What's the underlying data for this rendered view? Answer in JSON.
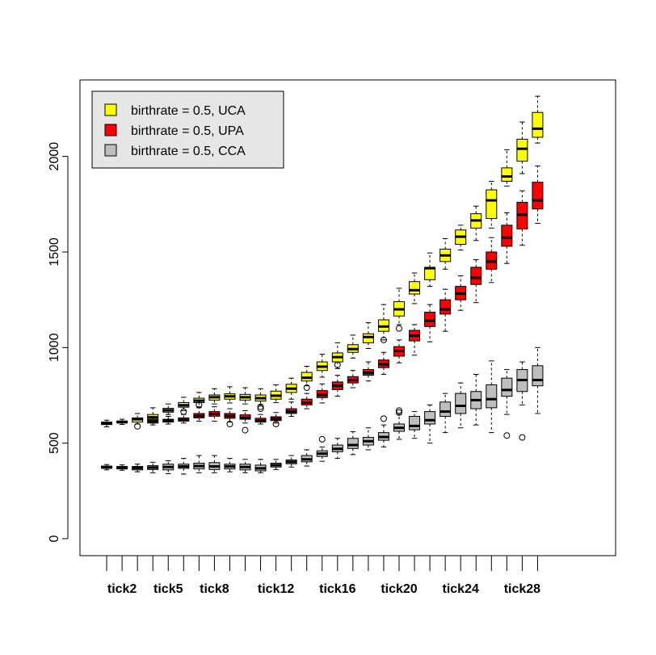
{
  "chart_data": {
    "type": "boxplot",
    "title": "",
    "xlabel": "",
    "ylabel": "",
    "ylim": [
      -90,
      2420
    ],
    "yticks": [
      0,
      500,
      1000,
      1500,
      2000
    ],
    "legend": {
      "placement": "top-left",
      "entries": [
        {
          "label": "birthrate = 0.5, UCA",
          "color": "#ffff00"
        },
        {
          "label": "birthrate = 0.5, UPA",
          "color": "#ff0000"
        },
        {
          "label": "birthrate = 0.5, CCA",
          "color": "#bebebe"
        }
      ]
    },
    "tick_labels": [
      {
        "label": "tick2",
        "tick": 2
      },
      {
        "label": "tick5",
        "tick": 5
      },
      {
        "label": "tick8",
        "tick": 8
      },
      {
        "label": "tick12",
        "tick": 12
      },
      {
        "label": "tick16",
        "tick": 16
      },
      {
        "label": "tick20",
        "tick": 20
      },
      {
        "label": "tick24",
        "tick": 24
      },
      {
        "label": "tick28",
        "tick": 28
      }
    ],
    "series": [
      {
        "name": "birthrate = 0.5, UCA",
        "color": "#ffff00",
        "boxes": [
          {
            "tick": 1,
            "min": 585,
            "q1": 597,
            "median": 603,
            "q3": 610,
            "max": 620,
            "outliers": []
          },
          {
            "tick": 2,
            "min": 598,
            "q1": 605,
            "median": 610,
            "q3": 616,
            "max": 625,
            "outliers": []
          },
          {
            "tick": 3,
            "min": 600,
            "q1": 610,
            "median": 625,
            "q3": 632,
            "max": 655,
            "outliers": [
              588
            ]
          },
          {
            "tick": 4,
            "min": 605,
            "q1": 625,
            "median": 635,
            "q3": 650,
            "max": 685,
            "outliers": []
          },
          {
            "tick": 5,
            "min": 650,
            "q1": 662,
            "median": 672,
            "q3": 682,
            "max": 705,
            "outliers": []
          },
          {
            "tick": 6,
            "min": 670,
            "q1": 688,
            "median": 698,
            "q3": 712,
            "max": 740,
            "outliers": [
              665
            ]
          },
          {
            "tick": 7,
            "min": 690,
            "q1": 712,
            "median": 722,
            "q3": 735,
            "max": 765,
            "outliers": [
              700
            ]
          },
          {
            "tick": 8,
            "min": 705,
            "q1": 725,
            "median": 740,
            "q3": 752,
            "max": 785,
            "outliers": []
          },
          {
            "tick": 9,
            "min": 710,
            "q1": 730,
            "median": 745,
            "q3": 758,
            "max": 795,
            "outliers": []
          },
          {
            "tick": 10,
            "min": 705,
            "q1": 725,
            "median": 740,
            "q3": 755,
            "max": 790,
            "outliers": []
          },
          {
            "tick": 11,
            "min": 700,
            "q1": 720,
            "median": 735,
            "q3": 752,
            "max": 785,
            "outliers": [
              690,
              680
            ]
          },
          {
            "tick": 12,
            "min": 712,
            "q1": 730,
            "median": 748,
            "q3": 772,
            "max": 805,
            "outliers": []
          },
          {
            "tick": 13,
            "min": 730,
            "q1": 765,
            "median": 785,
            "q3": 808,
            "max": 840,
            "outliers": []
          },
          {
            "tick": 14,
            "min": 800,
            "q1": 825,
            "median": 842,
            "q3": 870,
            "max": 902,
            "outliers": [
              790
            ]
          },
          {
            "tick": 15,
            "min": 845,
            "q1": 880,
            "median": 900,
            "q3": 925,
            "max": 965,
            "outliers": []
          },
          {
            "tick": 16,
            "min": 890,
            "q1": 925,
            "median": 950,
            "q3": 972,
            "max": 1025,
            "outliers": [
              910
            ]
          },
          {
            "tick": 17,
            "min": 945,
            "q1": 975,
            "median": 992,
            "q3": 1015,
            "max": 1065,
            "outliers": []
          },
          {
            "tick": 18,
            "min": 995,
            "q1": 1025,
            "median": 1055,
            "q3": 1072,
            "max": 1130,
            "outliers": []
          },
          {
            "tick": 19,
            "min": 1040,
            "q1": 1085,
            "median": 1110,
            "q3": 1145,
            "max": 1225,
            "outliers": [
              1040
            ]
          },
          {
            "tick": 20,
            "min": 1120,
            "q1": 1165,
            "median": 1200,
            "q3": 1240,
            "max": 1310,
            "outliers": [
              1100
            ]
          },
          {
            "tick": 21,
            "min": 1230,
            "q1": 1280,
            "median": 1300,
            "q3": 1345,
            "max": 1390,
            "outliers": []
          },
          {
            "tick": 22,
            "min": 1320,
            "q1": 1355,
            "median": 1415,
            "q3": 1420,
            "max": 1495,
            "outliers": []
          },
          {
            "tick": 23,
            "min": 1410,
            "q1": 1450,
            "median": 1482,
            "q3": 1515,
            "max": 1570,
            "outliers": []
          },
          {
            "tick": 24,
            "min": 1510,
            "q1": 1540,
            "median": 1580,
            "q3": 1615,
            "max": 1640,
            "outliers": []
          },
          {
            "tick": 25,
            "min": 1560,
            "q1": 1625,
            "median": 1665,
            "q3": 1700,
            "max": 1740,
            "outliers": []
          },
          {
            "tick": 26,
            "min": 1625,
            "q1": 1675,
            "median": 1770,
            "q3": 1825,
            "max": 1870,
            "outliers": []
          },
          {
            "tick": 27,
            "min": 1845,
            "q1": 1870,
            "median": 1895,
            "q3": 1940,
            "max": 2035,
            "outliers": []
          },
          {
            "tick": 28,
            "min": 1910,
            "q1": 1975,
            "median": 2040,
            "q3": 2090,
            "max": 2180,
            "outliers": []
          },
          {
            "tick": 29,
            "min": 2070,
            "q1": 2100,
            "median": 2145,
            "q3": 2230,
            "max": 2315,
            "outliers": []
          }
        ]
      },
      {
        "name": "birthrate = 0.5, UPA",
        "color": "#ff0000",
        "boxes": [
          {
            "tick": 4,
            "min": 595,
            "q1": 605,
            "median": 615,
            "q3": 625,
            "max": 640,
            "outliers": []
          },
          {
            "tick": 5,
            "min": 600,
            "q1": 610,
            "median": 617,
            "q3": 625,
            "max": 640,
            "outliers": []
          },
          {
            "tick": 6,
            "min": 605,
            "q1": 615,
            "median": 622,
            "q3": 632,
            "max": 650,
            "outliers": []
          },
          {
            "tick": 7,
            "min": 615,
            "q1": 632,
            "median": 642,
            "q3": 655,
            "max": 685,
            "outliers": []
          },
          {
            "tick": 8,
            "min": 615,
            "q1": 640,
            "median": 652,
            "q3": 665,
            "max": 690,
            "outliers": []
          },
          {
            "tick": 9,
            "min": 610,
            "q1": 630,
            "median": 642,
            "q3": 655,
            "max": 680,
            "outliers": [
              600
            ]
          },
          {
            "tick": 10,
            "min": 605,
            "q1": 625,
            "median": 632,
            "q3": 648,
            "max": 670,
            "outliers": [
              568
            ]
          },
          {
            "tick": 11,
            "min": 600,
            "q1": 610,
            "median": 618,
            "q3": 630,
            "max": 650,
            "outliers": []
          },
          {
            "tick": 12,
            "min": 605,
            "q1": 618,
            "median": 628,
            "q3": 638,
            "max": 660,
            "outliers": [
              600
            ]
          },
          {
            "tick": 13,
            "min": 640,
            "q1": 655,
            "median": 665,
            "q3": 680,
            "max": 715,
            "outliers": []
          },
          {
            "tick": 14,
            "min": 680,
            "q1": 700,
            "median": 712,
            "q3": 730,
            "max": 760,
            "outliers": []
          },
          {
            "tick": 15,
            "min": 710,
            "q1": 738,
            "median": 752,
            "q3": 775,
            "max": 810,
            "outliers": []
          },
          {
            "tick": 16,
            "min": 745,
            "q1": 780,
            "median": 800,
            "q3": 820,
            "max": 855,
            "outliers": []
          },
          {
            "tick": 17,
            "min": 790,
            "q1": 815,
            "median": 830,
            "q3": 848,
            "max": 880,
            "outliers": []
          },
          {
            "tick": 18,
            "min": 825,
            "q1": 855,
            "median": 868,
            "q3": 885,
            "max": 925,
            "outliers": []
          },
          {
            "tick": 19,
            "min": 860,
            "q1": 895,
            "median": 912,
            "q3": 935,
            "max": 975,
            "outliers": []
          },
          {
            "tick": 20,
            "min": 920,
            "q1": 955,
            "median": 982,
            "q3": 1005,
            "max": 1040,
            "outliers": []
          },
          {
            "tick": 21,
            "min": 960,
            "q1": 1035,
            "median": 1062,
            "q3": 1090,
            "max": 1120,
            "outliers": []
          },
          {
            "tick": 22,
            "min": 1030,
            "q1": 1110,
            "median": 1140,
            "q3": 1185,
            "max": 1225,
            "outliers": []
          },
          {
            "tick": 23,
            "min": 1085,
            "q1": 1175,
            "median": 1200,
            "q3": 1250,
            "max": 1305,
            "outliers": []
          },
          {
            "tick": 24,
            "min": 1195,
            "q1": 1250,
            "median": 1282,
            "q3": 1320,
            "max": 1375,
            "outliers": []
          },
          {
            "tick": 25,
            "min": 1235,
            "q1": 1330,
            "median": 1365,
            "q3": 1420,
            "max": 1460,
            "outliers": []
          },
          {
            "tick": 26,
            "min": 1340,
            "q1": 1410,
            "median": 1450,
            "q3": 1500,
            "max": 1575,
            "outliers": []
          },
          {
            "tick": 27,
            "min": 1440,
            "q1": 1530,
            "median": 1575,
            "q3": 1640,
            "max": 1705,
            "outliers": []
          },
          {
            "tick": 28,
            "min": 1535,
            "q1": 1620,
            "median": 1695,
            "q3": 1760,
            "max": 1820,
            "outliers": []
          },
          {
            "tick": 29,
            "min": 1650,
            "q1": 1725,
            "median": 1770,
            "q3": 1865,
            "max": 1950,
            "outliers": []
          }
        ]
      },
      {
        "name": "birthrate = 0.5, CCA",
        "color": "#bebebe",
        "boxes": [
          {
            "tick": 1,
            "min": 360,
            "q1": 368,
            "median": 374,
            "q3": 380,
            "max": 388,
            "outliers": []
          },
          {
            "tick": 2,
            "min": 358,
            "q1": 365,
            "median": 372,
            "q3": 378,
            "max": 386,
            "outliers": []
          },
          {
            "tick": 3,
            "min": 350,
            "q1": 360,
            "median": 370,
            "q3": 378,
            "max": 390,
            "outliers": []
          },
          {
            "tick": 4,
            "min": 345,
            "q1": 362,
            "median": 372,
            "q3": 382,
            "max": 400,
            "outliers": []
          },
          {
            "tick": 5,
            "min": 340,
            "q1": 360,
            "median": 375,
            "q3": 390,
            "max": 408,
            "outliers": []
          },
          {
            "tick": 6,
            "min": 338,
            "q1": 368,
            "median": 378,
            "q3": 390,
            "max": 420,
            "outliers": []
          },
          {
            "tick": 7,
            "min": 345,
            "q1": 365,
            "median": 380,
            "q3": 395,
            "max": 435,
            "outliers": []
          },
          {
            "tick": 8,
            "min": 345,
            "q1": 362,
            "median": 378,
            "q3": 398,
            "max": 435,
            "outliers": []
          },
          {
            "tick": 9,
            "min": 350,
            "q1": 365,
            "median": 378,
            "q3": 390,
            "max": 420,
            "outliers": []
          },
          {
            "tick": 10,
            "min": 345,
            "q1": 360,
            "median": 375,
            "q3": 390,
            "max": 415,
            "outliers": []
          },
          {
            "tick": 11,
            "min": 345,
            "q1": 355,
            "median": 368,
            "q3": 385,
            "max": 415,
            "outliers": []
          },
          {
            "tick": 12,
            "min": 362,
            "q1": 375,
            "median": 385,
            "q3": 395,
            "max": 415,
            "outliers": []
          },
          {
            "tick": 13,
            "min": 375,
            "q1": 392,
            "median": 402,
            "q3": 412,
            "max": 435,
            "outliers": []
          },
          {
            "tick": 14,
            "min": 380,
            "q1": 402,
            "median": 415,
            "q3": 435,
            "max": 465,
            "outliers": []
          },
          {
            "tick": 15,
            "min": 405,
            "q1": 430,
            "median": 445,
            "q3": 460,
            "max": 480,
            "outliers": [
              520
            ]
          },
          {
            "tick": 16,
            "min": 420,
            "q1": 455,
            "median": 470,
            "q3": 490,
            "max": 525,
            "outliers": []
          },
          {
            "tick": 17,
            "min": 440,
            "q1": 472,
            "median": 490,
            "q3": 525,
            "max": 560,
            "outliers": []
          },
          {
            "tick": 18,
            "min": 465,
            "q1": 490,
            "median": 510,
            "q3": 530,
            "max": 580,
            "outliers": []
          },
          {
            "tick": 19,
            "min": 480,
            "q1": 515,
            "median": 532,
            "q3": 555,
            "max": 595,
            "outliers": [
              628
            ]
          },
          {
            "tick": 20,
            "min": 520,
            "q1": 562,
            "median": 580,
            "q3": 600,
            "max": 650,
            "outliers": [
              660,
              670
            ]
          },
          {
            "tick": 21,
            "min": 525,
            "q1": 570,
            "median": 590,
            "q3": 640,
            "max": 665,
            "outliers": []
          },
          {
            "tick": 22,
            "min": 500,
            "q1": 600,
            "median": 620,
            "q3": 665,
            "max": 700,
            "outliers": []
          },
          {
            "tick": 23,
            "min": 555,
            "q1": 640,
            "median": 665,
            "q3": 715,
            "max": 760,
            "outliers": []
          },
          {
            "tick": 24,
            "min": 580,
            "q1": 655,
            "median": 695,
            "q3": 760,
            "max": 815,
            "outliers": []
          },
          {
            "tick": 25,
            "min": 595,
            "q1": 680,
            "median": 725,
            "q3": 770,
            "max": 860,
            "outliers": []
          },
          {
            "tick": 26,
            "min": 555,
            "q1": 685,
            "median": 730,
            "q3": 805,
            "max": 930,
            "outliers": []
          },
          {
            "tick": 27,
            "min": 650,
            "q1": 745,
            "median": 778,
            "q3": 840,
            "max": 885,
            "outliers": [
              540
            ]
          },
          {
            "tick": 28,
            "min": 700,
            "q1": 770,
            "median": 830,
            "q3": 885,
            "max": 925,
            "outliers": [
              530
            ]
          },
          {
            "tick": 29,
            "min": 655,
            "q1": 800,
            "median": 830,
            "q3": 905,
            "max": 1000,
            "outliers": []
          }
        ]
      }
    ]
  }
}
